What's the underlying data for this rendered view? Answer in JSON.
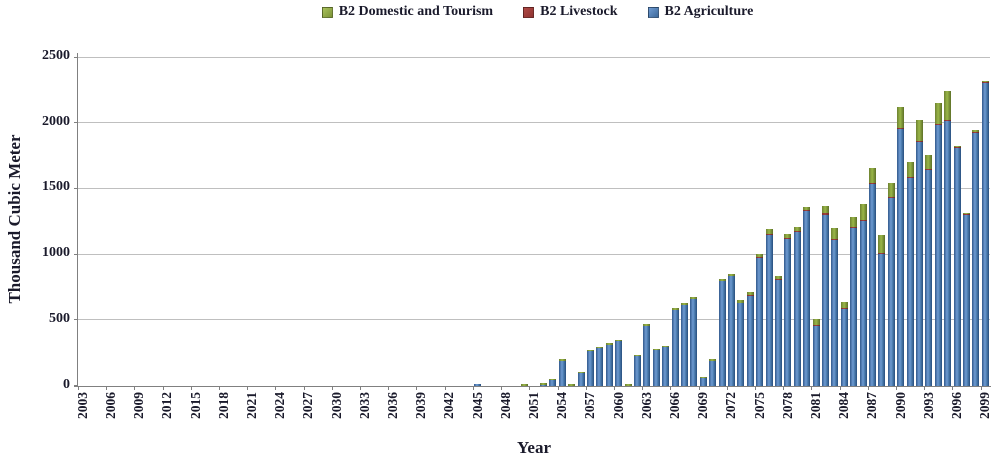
{
  "legend": {
    "items": [
      {
        "key": "domestic",
        "label": "B2 Domestic and Tourism",
        "color": "#9bbb59"
      },
      {
        "key": "livestock",
        "label": "B2 Livestock",
        "color": "#a2423e"
      },
      {
        "key": "agriculture",
        "label": "B2 Agriculture",
        "color": "#4f81bd"
      }
    ]
  },
  "y_axis": {
    "title": "Thousand  Cubic Meter",
    "ticks": [
      0,
      500,
      1000,
      1500,
      2000,
      2500
    ],
    "max": 2500
  },
  "x_axis": {
    "title": "Year",
    "labeled_years": [
      2003,
      2006,
      2009,
      2012,
      2015,
      2018,
      2021,
      2024,
      2027,
      2030,
      2033,
      2036,
      2039,
      2042,
      2045,
      2048,
      2051,
      2054,
      2057,
      2060,
      2063,
      2066,
      2069,
      2072,
      2075,
      2078,
      2081,
      2084,
      2087,
      2090,
      2093,
      2096,
      2099
    ]
  },
  "chart_data": {
    "type": "bar",
    "stacked": true,
    "title": "",
    "xlabel": "Year",
    "ylabel": "Thousand Cubic Meter",
    "ylim": [
      0,
      2500
    ],
    "grid": true,
    "legend_position": "top",
    "x": [
      2003,
      2004,
      2005,
      2006,
      2007,
      2008,
      2009,
      2010,
      2011,
      2012,
      2013,
      2014,
      2015,
      2016,
      2017,
      2018,
      2019,
      2020,
      2021,
      2022,
      2023,
      2024,
      2025,
      2026,
      2027,
      2028,
      2029,
      2030,
      2031,
      2032,
      2033,
      2034,
      2035,
      2036,
      2037,
      2038,
      2039,
      2040,
      2041,
      2042,
      2043,
      2044,
      2045,
      2046,
      2047,
      2048,
      2049,
      2050,
      2051,
      2052,
      2053,
      2054,
      2055,
      2056,
      2057,
      2058,
      2059,
      2060,
      2061,
      2062,
      2063,
      2064,
      2065,
      2066,
      2067,
      2068,
      2069,
      2070,
      2071,
      2072,
      2073,
      2074,
      2075,
      2076,
      2077,
      2078,
      2079,
      2080,
      2081,
      2082,
      2083,
      2084,
      2085,
      2086,
      2087,
      2088,
      2089,
      2090,
      2091,
      2092,
      2093,
      2094,
      2095,
      2096,
      2097,
      2098,
      2099
    ],
    "series": [
      {
        "key": "agriculture",
        "name": "B2 Agriculture",
        "color": "#4f81bd",
        "stack_position": "bottom",
        "values": [
          0,
          0,
          0,
          0,
          0,
          0,
          0,
          0,
          0,
          0,
          0,
          0,
          0,
          0,
          0,
          0,
          0,
          0,
          0,
          0,
          0,
          0,
          0,
          0,
          0,
          0,
          0,
          0,
          0,
          0,
          0,
          0,
          0,
          0,
          0,
          0,
          0,
          0,
          0,
          0,
          0,
          0,
          10,
          0,
          0,
          0,
          0,
          0,
          0,
          5,
          40,
          190,
          0,
          95,
          260,
          285,
          310,
          340,
          0,
          225,
          455,
          270,
          290,
          575,
          615,
          655,
          55,
          190,
          795,
          830,
          630,
          680,
          970,
          1145,
          805,
          1115,
          1165,
          1330,
          450,
          1300,
          1110,
          585,
          1195,
          1255,
          1535,
          1000,
          1425,
          1950,
          1580,
          1855,
          1640,
          1985,
          2015,
          1805,
          1295,
          1925,
          2300
        ]
      },
      {
        "key": "livestock",
        "name": "B2 Livestock",
        "color": "#a2423e",
        "stack_position": "middle",
        "values": [
          0,
          0,
          0,
          0,
          0,
          0,
          0,
          0,
          0,
          0,
          0,
          0,
          0,
          0,
          0,
          0,
          0,
          0,
          0,
          0,
          0,
          0,
          0,
          0,
          0,
          0,
          0,
          0,
          0,
          0,
          0,
          0,
          0,
          0,
          0,
          0,
          0,
          0,
          0,
          0,
          0,
          0,
          0,
          0,
          0,
          0,
          0,
          0,
          0,
          0,
          0,
          0,
          0,
          0,
          0,
          0,
          0,
          0,
          0,
          0,
          0,
          0,
          0,
          0,
          0,
          0,
          0,
          0,
          0,
          0,
          0,
          5,
          5,
          5,
          5,
          10,
          5,
          5,
          5,
          10,
          5,
          5,
          5,
          5,
          10,
          5,
          10,
          10,
          5,
          5,
          5,
          5,
          5,
          5,
          5,
          5,
          5
        ]
      },
      {
        "key": "domestic",
        "name": "B2 Domestic and Tourism",
        "color": "#9bbb59",
        "stack_position": "top",
        "values": [
          0,
          0,
          0,
          0,
          0,
          0,
          0,
          0,
          0,
          0,
          0,
          0,
          0,
          0,
          0,
          0,
          0,
          0,
          0,
          0,
          0,
          0,
          0,
          0,
          0,
          0,
          0,
          0,
          0,
          0,
          0,
          0,
          0,
          0,
          0,
          0,
          0,
          0,
          0,
          0,
          0,
          0,
          0,
          0,
          0,
          0,
          0,
          8,
          0,
          10,
          12,
          15,
          8,
          10,
          10,
          10,
          10,
          10,
          8,
          10,
          12,
          10,
          10,
          15,
          15,
          18,
          10,
          10,
          18,
          20,
          20,
          25,
          25,
          40,
          20,
          30,
          35,
          20,
          45,
          60,
          85,
          40,
          80,
          120,
          110,
          135,
          110,
          160,
          110,
          160,
          110,
          155,
          220,
          10,
          10,
          10,
          10
        ]
      }
    ]
  }
}
